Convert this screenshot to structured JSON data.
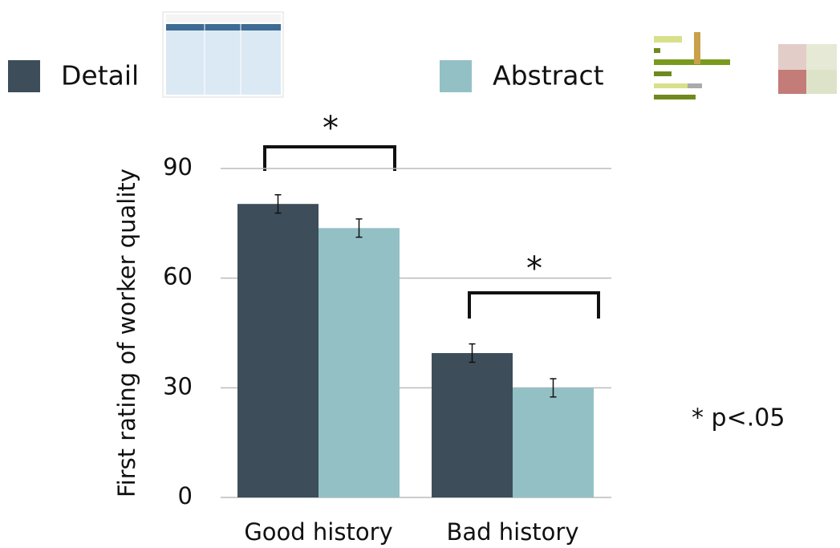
{
  "chart_data": {
    "type": "bar",
    "y_label": "First rating of worker quality",
    "categories": [
      "Good history",
      "Bad history"
    ],
    "series": [
      {
        "name": "Detail",
        "color": "#3d4d5a",
        "values": [
          80.3,
          39.5
        ],
        "errors": [
          2.5,
          2.5
        ]
      },
      {
        "name": "Abstract",
        "color": "#93c0c5",
        "values": [
          73.7,
          30
        ],
        "errors": [
          2.5,
          2.5
        ]
      }
    ],
    "ylim": [
      0,
      90
    ],
    "yticks": [
      0,
      30,
      60,
      90
    ],
    "grid": true,
    "annotations": [
      "*",
      "*",
      "* p<.05"
    ]
  }
}
